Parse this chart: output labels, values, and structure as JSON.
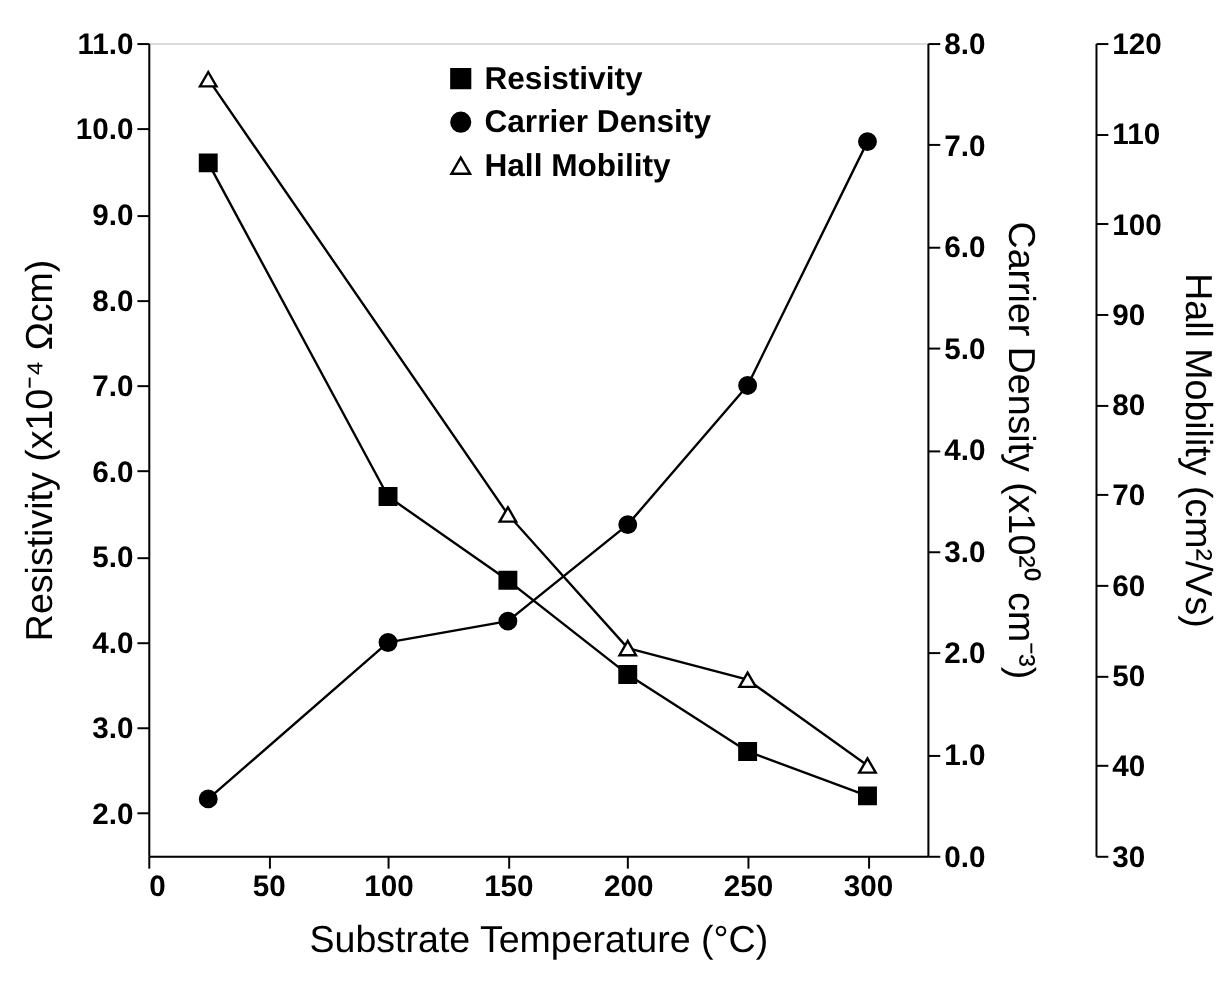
{
  "chart_data": {
    "type": "line",
    "xlabel": "Substrate Temperature (°C)",
    "ylabel": "Resistivity (x10⁻⁴ Ωcm)",
    "y2label": "Carrier Density (x10²⁰ cm⁻³)",
    "y3label": "Hall Mobility (cm²/Vs)",
    "x": [
      25,
      100,
      150,
      200,
      250,
      300
    ],
    "xlim": [
      0,
      325
    ],
    "xticks": [
      0,
      50,
      100,
      150,
      200,
      250,
      300
    ],
    "ylim": [
      1.5,
      11
    ],
    "yticks": [
      {
        "value": 2,
        "label": "2.0"
      },
      {
        "value": 3,
        "label": "3.0"
      },
      {
        "value": 4,
        "label": "4.0"
      },
      {
        "value": 5,
        "label": "5.0"
      },
      {
        "value": 6,
        "label": "6.0"
      },
      {
        "value": 7,
        "label": "7.0"
      },
      {
        "value": 8,
        "label": "8.0"
      },
      {
        "value": 9,
        "label": "9.0"
      },
      {
        "value": 10,
        "label": "10.0"
      },
      {
        "value": 11,
        "label": "11.0"
      }
    ],
    "y2lim": [
      0,
      8
    ],
    "y2ticks": [
      {
        "value": 0,
        "label": "0.0"
      },
      {
        "value": 1,
        "label": "1.0"
      },
      {
        "value": 2,
        "label": "2.0"
      },
      {
        "value": 3,
        "label": "3.0"
      },
      {
        "value": 4,
        "label": "4.0"
      },
      {
        "value": 5,
        "label": "5.0"
      },
      {
        "value": 6,
        "label": "6.0"
      },
      {
        "value": 7,
        "label": "7.0"
      },
      {
        "value": 8,
        "label": "8.0"
      }
    ],
    "y3lim": [
      30,
      120
    ],
    "y3ticks": [
      30,
      40,
      50,
      60,
      70,
      80,
      90,
      100,
      110,
      120
    ],
    "series": [
      {
        "name": "Resistivity",
        "color": "#000000",
        "axis": "y",
        "marker": "square",
        "values": [
          9.6,
          5.7,
          4.72,
          3.62,
          2.72,
          2.2
        ]
      },
      {
        "name": "Carrier Density",
        "color": "#000000",
        "axis": "y2",
        "marker": "circle",
        "values": [
          0.56,
          2.1,
          2.31,
          3.26,
          4.63,
          7.03
        ]
      },
      {
        "name": "Hall Mobility",
        "color": "#000000",
        "axis": "y3",
        "marker": "triangle",
        "x": [
          25,
          150,
          200,
          250,
          300
        ],
        "values": [
          116,
          67.8,
          53,
          49.5,
          40
        ]
      }
    ],
    "legend": "top",
    "grid": false,
    "line_style": "solid"
  }
}
